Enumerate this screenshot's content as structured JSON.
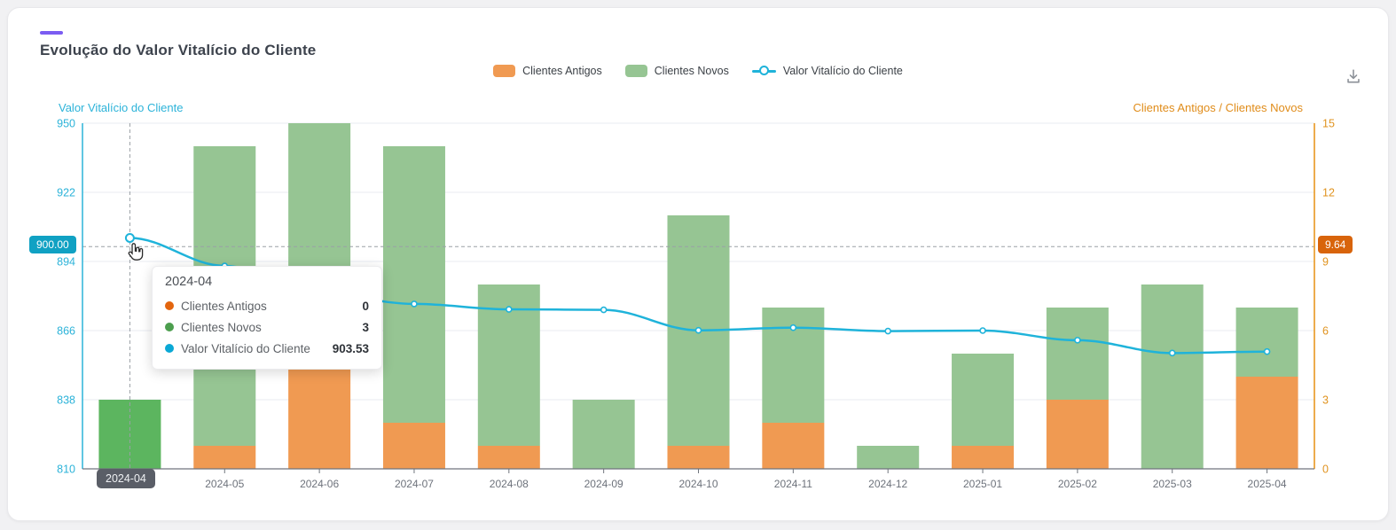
{
  "card": {
    "title": "Evolução do Valor Vitalício do Cliente",
    "accent_color": "#7b5cf2"
  },
  "legend": {
    "items": [
      {
        "label": "Clientes Antigos",
        "marker": "bar-swatch",
        "color": "#f09a52"
      },
      {
        "label": "Clientes Novos",
        "marker": "bar-swatch",
        "color": "#96c593"
      },
      {
        "label": "Valor Vitalício do Cliente",
        "marker": "line-circle",
        "color": "#1fb3da"
      }
    ]
  },
  "axes": {
    "left": {
      "title": "Valor Vitalício do Cliente",
      "color": "#2cb3d9",
      "ticks": [
        "950",
        "922",
        "894",
        "866",
        "838",
        "810"
      ],
      "pointer_label": "900.00"
    },
    "right": {
      "title": "Clientes Antigos / Clientes Novos",
      "color": "#e08c1a",
      "ticks": [
        "15",
        "12",
        "9",
        "6",
        "3",
        "0"
      ],
      "pointer_label": "9.64"
    },
    "x": {
      "pointer_label": "2024-04"
    }
  },
  "tooltip": {
    "title": "2024-04",
    "rows": [
      {
        "label": "Clientes Antigos",
        "value": "0",
        "color": "#e3650e"
      },
      {
        "label": "Clientes Novos",
        "value": "3",
        "color": "#4c9e4e"
      },
      {
        "label": "Valor Vitalício do Cliente",
        "value": "903.53",
        "color": "#0aa8d5"
      }
    ]
  },
  "chart_data": {
    "type": "bar",
    "subtype": "stacked-bar-with-line-combo",
    "title": "Evolução do Valor Vitalício do Cliente",
    "categories": [
      "2024-04",
      "2024-05",
      "2024-06",
      "2024-07",
      "2024-08",
      "2024-09",
      "2024-10",
      "2024-11",
      "2024-12",
      "2025-01",
      "2025-02",
      "2025-03",
      "2025-04"
    ],
    "series": [
      {
        "name": "Clientes Antigos",
        "type": "bar",
        "stack": "clientes",
        "yaxis": "right",
        "color": "#f09a52",
        "values": [
          0,
          1,
          5,
          2,
          1,
          0,
          1,
          2,
          0,
          1,
          3,
          0,
          4
        ]
      },
      {
        "name": "Clientes Novos",
        "type": "bar",
        "stack": "clientes",
        "yaxis": "right",
        "color": "#96c593",
        "highlight_color": "#5cb55f",
        "highlighted_index": 0,
        "values": [
          3,
          13,
          10,
          12,
          7,
          3,
          10,
          5,
          1,
          4,
          4,
          8,
          3
        ]
      },
      {
        "name": "Valor Vitalício do Cliente",
        "type": "line",
        "yaxis": "left",
        "color": "#1fb3da",
        "values": [
          903.53,
          892.2,
          881.0,
          876.8,
          874.6,
          874.4,
          866.1,
          867.2,
          865.8,
          866.0,
          862.1,
          856.9,
          857.5
        ]
      }
    ],
    "left_axis": {
      "label": "Valor Vitalício do Cliente",
      "range": [
        810,
        950
      ],
      "tick_step": 28
    },
    "right_axis": {
      "label": "Clientes Antigos / Clientes Novos",
      "range": [
        0,
        15
      ],
      "tick_step": 3
    },
    "grid": true,
    "legend_position": "top",
    "crosshair": {
      "category": "2024-04",
      "category_index": 0,
      "left_value": 900.0,
      "right_value": 9.64
    }
  }
}
